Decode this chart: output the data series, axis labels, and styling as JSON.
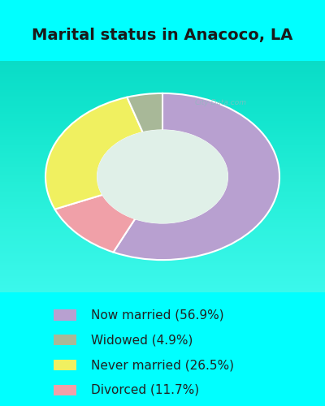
{
  "title": "Marital status in Anacoco, LA",
  "title_fontsize": 14,
  "title_color": "#1a1a1a",
  "fig_bg_color": "#00FFFF",
  "chart_bg_top": "#d8ede0",
  "chart_bg_bottom": "#f0f8f4",
  "legend_bg_color": "#00FFFF",
  "watermark": "City-Data.com",
  "legend_labels": [
    "Now married (56.9%)",
    "Widowed (4.9%)",
    "Never married (26.5%)",
    "Divorced (11.7%)"
  ],
  "legend_colors": [
    "#b8a0d0",
    "#a8b898",
    "#f0f060",
    "#f0a0a8"
  ],
  "legend_fontsize": 11,
  "wedge_values": [
    56.9,
    11.7,
    26.5,
    4.9
  ],
  "wedge_colors": [
    "#b8a0d0",
    "#f0a0a8",
    "#f0f060",
    "#a8b898"
  ],
  "donut_width": 0.38,
  "start_angle": 90
}
